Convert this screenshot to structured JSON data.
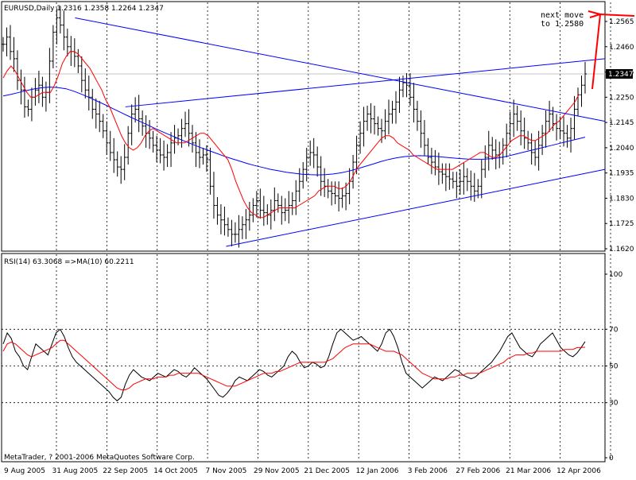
{
  "chart_data": [
    {
      "type": "candlestick",
      "symbol": "EURUSD",
      "timeframe": "Daily",
      "header_text": "EURUSD,Daily  1.2316 1.2358 1.2264 1.2347",
      "ohlc": {
        "open": 1.2316,
        "high": 1.2358,
        "low": 1.2264,
        "close": 1.2347
      },
      "current_price_label": "1.2347",
      "ylim": [
        1.162,
        1.262
      ],
      "y_ticks": [
        "1.2565",
        "1.2460",
        "1.2355",
        "1.2250",
        "1.2145",
        "1.2040",
        "1.1935",
        "1.1830",
        "1.1725",
        "1.1620"
      ],
      "x_ticks": [
        "9 Aug 2005",
        "31 Aug 2005",
        "22 Sep 2005",
        "14 Oct 2005",
        "7 Nov 2005",
        "29 Nov 2005",
        "21 Dec 2005",
        "12 Jan 2006",
        "3 Feb 2006",
        "27 Feb 2006",
        "21 Mar 2006",
        "12 Apr 2006"
      ],
      "annotation": [
        "next move",
        "to 1.2580"
      ],
      "colors": {
        "price_bars": "#000000",
        "ma_fast": "#ff0000",
        "ma_slow": "#0000ff",
        "trendlines": "#0000ff",
        "annotation_arrow": "#ff0000",
        "grid": "#000000"
      },
      "grid": true,
      "series": [
        {
          "name": "",
          "color": "#000000",
          "values": [
            1.247,
            1.25,
            1.244,
            1.241,
            1.232,
            1.228,
            1.221,
            1.22,
            1.225,
            1.228,
            1.23,
            1.225,
            1.227,
            1.24,
            1.252,
            1.258,
            1.255,
            1.25,
            1.246,
            1.244,
            1.242,
            1.238,
            1.232,
            1.228,
            1.225,
            1.22,
            1.218,
            1.215,
            1.211,
            1.206,
            1.202,
            1.199,
            1.196,
            1.195,
            1.2,
            1.21,
            1.218,
            1.22,
            1.216,
            1.213,
            1.21,
            1.208,
            1.205,
            1.203,
            1.201,
            1.2,
            1.202,
            1.206,
            1.208,
            1.209,
            1.212,
            1.214,
            1.21,
            1.206,
            1.202,
            1.2,
            1.201,
            1.199,
            1.188,
            1.18,
            1.176,
            1.174,
            1.172,
            1.17,
            1.168,
            1.168,
            1.17,
            1.172,
            1.174,
            1.176,
            1.18,
            1.182,
            1.178,
            1.177,
            1.176,
            1.178,
            1.182,
            1.18,
            1.177,
            1.178,
            1.18,
            1.182,
            1.186,
            1.19,
            1.195,
            1.2,
            1.202,
            1.201,
            1.196,
            1.19,
            1.188,
            1.186,
            1.185,
            1.184,
            1.183,
            1.184,
            1.185,
            1.19,
            1.198,
            1.205,
            1.21,
            1.215,
            1.218,
            1.216,
            1.214,
            1.212,
            1.211,
            1.215,
            1.218,
            1.22,
            1.223,
            1.228,
            1.231,
            1.23,
            1.225,
            1.22,
            1.215,
            1.21,
            1.205,
            1.2,
            1.198,
            1.196,
            1.194,
            1.193,
            1.192,
            1.191,
            1.19,
            1.188,
            1.19,
            1.192,
            1.19,
            1.188,
            1.186,
            1.188,
            1.195,
            1.2,
            1.205,
            1.203,
            1.201,
            1.2,
            1.205,
            1.21,
            1.214,
            1.218,
            1.215,
            1.211,
            1.208,
            1.206,
            1.202,
            1.2,
            1.205,
            1.21,
            1.215,
            1.218,
            1.214,
            1.212,
            1.211,
            1.21,
            1.208,
            1.212,
            1.22,
            1.226,
            1.23,
            1.2347
          ]
        },
        {
          "name": "",
          "color": "#ff0000",
          "values": [
            1.233,
            1.236,
            1.238,
            1.236,
            1.233,
            1.23,
            1.227,
            1.225,
            1.225,
            1.226,
            1.227,
            1.227,
            1.227,
            1.23,
            1.234,
            1.239,
            1.242,
            1.244,
            1.244,
            1.243,
            1.241,
            1.239,
            1.237,
            1.234,
            1.231,
            1.228,
            1.224,
            1.221,
            1.217,
            1.213,
            1.209,
            1.206,
            1.204,
            1.203,
            1.204,
            1.206,
            1.209,
            1.211,
            1.212,
            1.211,
            1.21,
            1.209,
            1.208,
            1.207,
            1.206,
            1.206,
            1.206,
            1.207,
            1.208,
            1.209,
            1.21,
            1.21,
            1.209,
            1.207,
            1.205,
            1.203,
            1.201,
            1.199,
            1.195,
            1.19,
            1.186,
            1.182,
            1.179,
            1.177,
            1.176,
            1.175,
            1.175,
            1.176,
            1.177,
            1.178,
            1.179,
            1.179,
            1.179,
            1.179,
            1.179,
            1.18,
            1.181,
            1.182,
            1.183,
            1.184,
            1.186,
            1.187,
            1.188,
            1.188,
            1.188,
            1.187,
            1.187,
            1.188,
            1.19,
            1.193,
            1.196,
            1.198,
            1.2,
            1.202,
            1.204,
            1.206,
            1.208,
            1.209,
            1.209,
            1.208,
            1.206,
            1.205,
            1.204,
            1.203,
            1.201,
            1.2,
            1.199,
            1.198,
            1.197,
            1.196,
            1.195,
            1.195,
            1.195,
            1.195,
            1.195,
            1.196,
            1.197,
            1.198,
            1.199,
            1.2,
            1.201,
            1.202,
            1.202,
            1.201,
            1.2,
            1.2,
            1.201,
            1.203,
            1.205,
            1.207,
            1.208,
            1.209,
            1.209,
            1.208,
            1.207,
            1.207,
            1.208,
            1.209,
            1.21,
            1.212,
            1.214,
            1.215,
            1.217,
            1.219,
            1.221,
            1.223,
            1.226
          ]
        },
        {
          "name": "",
          "color": "#0000ff",
          "values": [
            1.2255,
            1.2262,
            1.227,
            1.2278,
            1.2285,
            1.229,
            1.2292,
            1.229,
            1.2285,
            1.2275,
            1.2262,
            1.2248,
            1.2233,
            1.2218,
            1.2202,
            1.2186,
            1.217,
            1.2155,
            1.214,
            1.2125,
            1.211,
            1.2096,
            1.2082,
            1.2068,
            1.2055,
            1.2042,
            1.203,
            1.2018,
            1.2006,
            1.1995,
            1.1985,
            1.1975,
            1.1966,
            1.1958,
            1.195,
            1.1944,
            1.1938,
            1.1934,
            1.193,
            1.1928,
            1.1927,
            1.1928,
            1.1931,
            1.1936,
            1.1943,
            1.1952,
            1.1962,
            1.1972,
            1.1982,
            1.1991,
            1.1998,
            1.2003,
            1.2006,
            1.2007,
            1.2006,
            1.2004,
            1.2001,
            1.1998,
            1.1995,
            1.1993,
            1.1992,
            1.1992,
            1.1994,
            1.1998,
            1.2004,
            1.2012,
            1.202,
            1.2028,
            1.2036,
            1.2044,
            1.2052,
            1.206,
            1.2068,
            1.2076,
            1.2084
          ]
        }
      ],
      "trendlines": [
        {
          "from": [
            "31 Aug 2005",
            1.258
          ],
          "to": [
            "26 Apr 2006",
            1.215
          ]
        },
        {
          "from": [
            "22 Sep 2005",
            1.221
          ],
          "to": [
            "26 Apr 2006",
            1.241
          ]
        },
        {
          "from": [
            "7 Nov 2005",
            1.163
          ],
          "to": [
            "26 Apr 2006",
            1.195
          ]
        }
      ]
    },
    {
      "type": "line",
      "header_text": "RSI(14) 63.3068  =>MA(10) 60.2211",
      "rsi_value": 63.3068,
      "ma_value": 60.2211,
      "ylim": [
        0,
        100
      ],
      "y_ticks": [
        "100",
        "70",
        "50",
        "30",
        "0"
      ],
      "grid": true,
      "series": [
        {
          "name": "RSI(14)",
          "color": "#000000",
          "values": [
            62,
            68,
            65,
            58,
            55,
            50,
            48,
            55,
            62,
            60,
            58,
            56,
            62,
            68,
            70,
            66,
            60,
            55,
            52,
            50,
            48,
            46,
            44,
            42,
            40,
            38,
            36,
            33,
            31,
            33,
            40,
            45,
            48,
            46,
            44,
            43,
            42,
            44,
            46,
            45,
            44,
            46,
            48,
            47,
            45,
            44,
            46,
            49,
            47,
            45,
            43,
            40,
            37,
            34,
            33,
            35,
            38,
            42,
            44,
            43,
            42,
            44,
            46,
            48,
            47,
            45,
            44,
            46,
            48,
            50,
            55,
            58,
            56,
            52,
            49,
            50,
            52,
            51,
            49,
            50,
            55,
            62,
            68,
            70,
            68,
            66,
            64,
            65,
            66,
            64,
            62,
            60,
            58,
            62,
            68,
            70,
            66,
            60,
            52,
            46,
            44,
            42,
            40,
            38,
            40,
            42,
            44,
            43,
            42,
            44,
            46,
            48,
            47,
            45,
            44,
            43,
            44,
            46,
            48,
            50,
            52,
            55,
            58,
            62,
            66,
            68,
            64,
            60,
            58,
            56,
            55,
            58,
            62,
            64,
            66,
            68,
            64,
            60,
            58,
            56,
            55,
            57,
            60,
            63.3068
          ]
        },
        {
          "name": "MA(10)",
          "color": "#ff0000",
          "values": [
            58,
            62,
            63,
            62,
            60,
            58,
            56,
            55,
            56,
            57,
            58,
            59,
            60,
            62,
            64,
            64,
            62,
            60,
            58,
            56,
            54,
            52,
            50,
            48,
            46,
            44,
            42,
            40,
            38,
            37,
            37,
            38,
            40,
            41,
            42,
            43,
            43,
            43,
            44,
            44,
            44,
            45,
            45,
            46,
            46,
            46,
            46,
            46,
            46,
            45,
            44,
            43,
            42,
            41,
            40,
            39,
            39,
            39,
            40,
            41,
            42,
            43,
            44,
            45,
            46,
            46,
            46,
            47,
            47,
            48,
            49,
            50,
            51,
            52,
            52,
            52,
            52,
            52,
            52,
            52,
            53,
            54,
            56,
            58,
            60,
            61,
            62,
            62,
            62,
            62,
            62,
            61,
            60,
            59,
            58,
            58,
            58,
            57,
            56,
            54,
            52,
            50,
            48,
            46,
            45,
            44,
            43,
            43,
            43,
            43,
            44,
            44,
            45,
            45,
            46,
            46,
            46,
            46,
            47,
            48,
            49,
            50,
            51,
            52,
            54,
            55,
            56,
            56,
            56,
            57,
            57,
            58,
            58,
            58,
            58,
            58,
            58,
            58,
            59,
            59,
            59,
            60,
            60,
            60.2211
          ]
        }
      ]
    }
  ],
  "footer": {
    "copyright": "MetaTrader, ? 2001-2006 MetaQuotes Software Corp."
  }
}
